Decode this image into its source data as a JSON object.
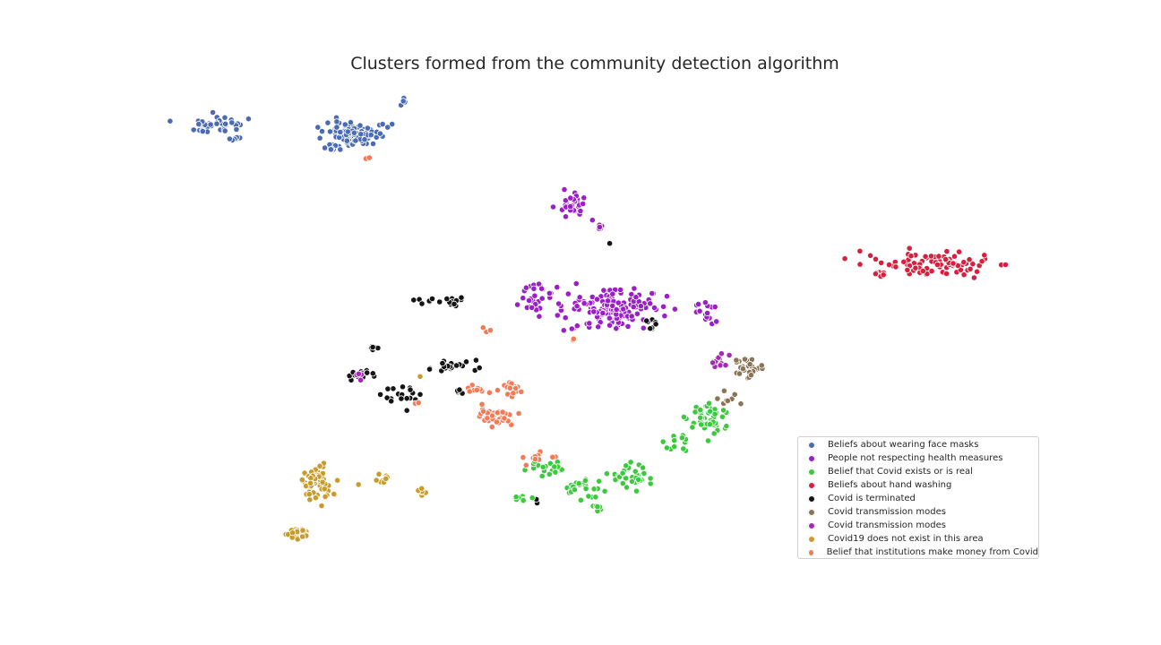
{
  "chart_data": {
    "type": "scatter",
    "title": "Clusters formed from the community detection algorithm",
    "legend_position": "lower-right",
    "grid": false,
    "series": [
      {
        "name": "Beliefs about wearing face masks",
        "color": "#4c6bb5"
      },
      {
        "name": "People not respecting health measures",
        "color": "#9b1fc9"
      },
      {
        "name": "Belief that Covid exists or is real",
        "color": "#3dc93d"
      },
      {
        "name": "Beliefs about hand washing",
        "color": "#d6203d"
      },
      {
        "name": "Covid is terminated",
        "color": "#141414"
      },
      {
        "name": "Covid transmission modes",
        "color": "#8b7355"
      },
      {
        "name": "Covid transmission modes",
        "color": "#a52ab5"
      },
      {
        "name": "Covid19 does not exist in this area",
        "color": "#c89b2d"
      },
      {
        "name": "Belief that institutions make money from Covid",
        "color": "#f47a55"
      }
    ]
  }
}
